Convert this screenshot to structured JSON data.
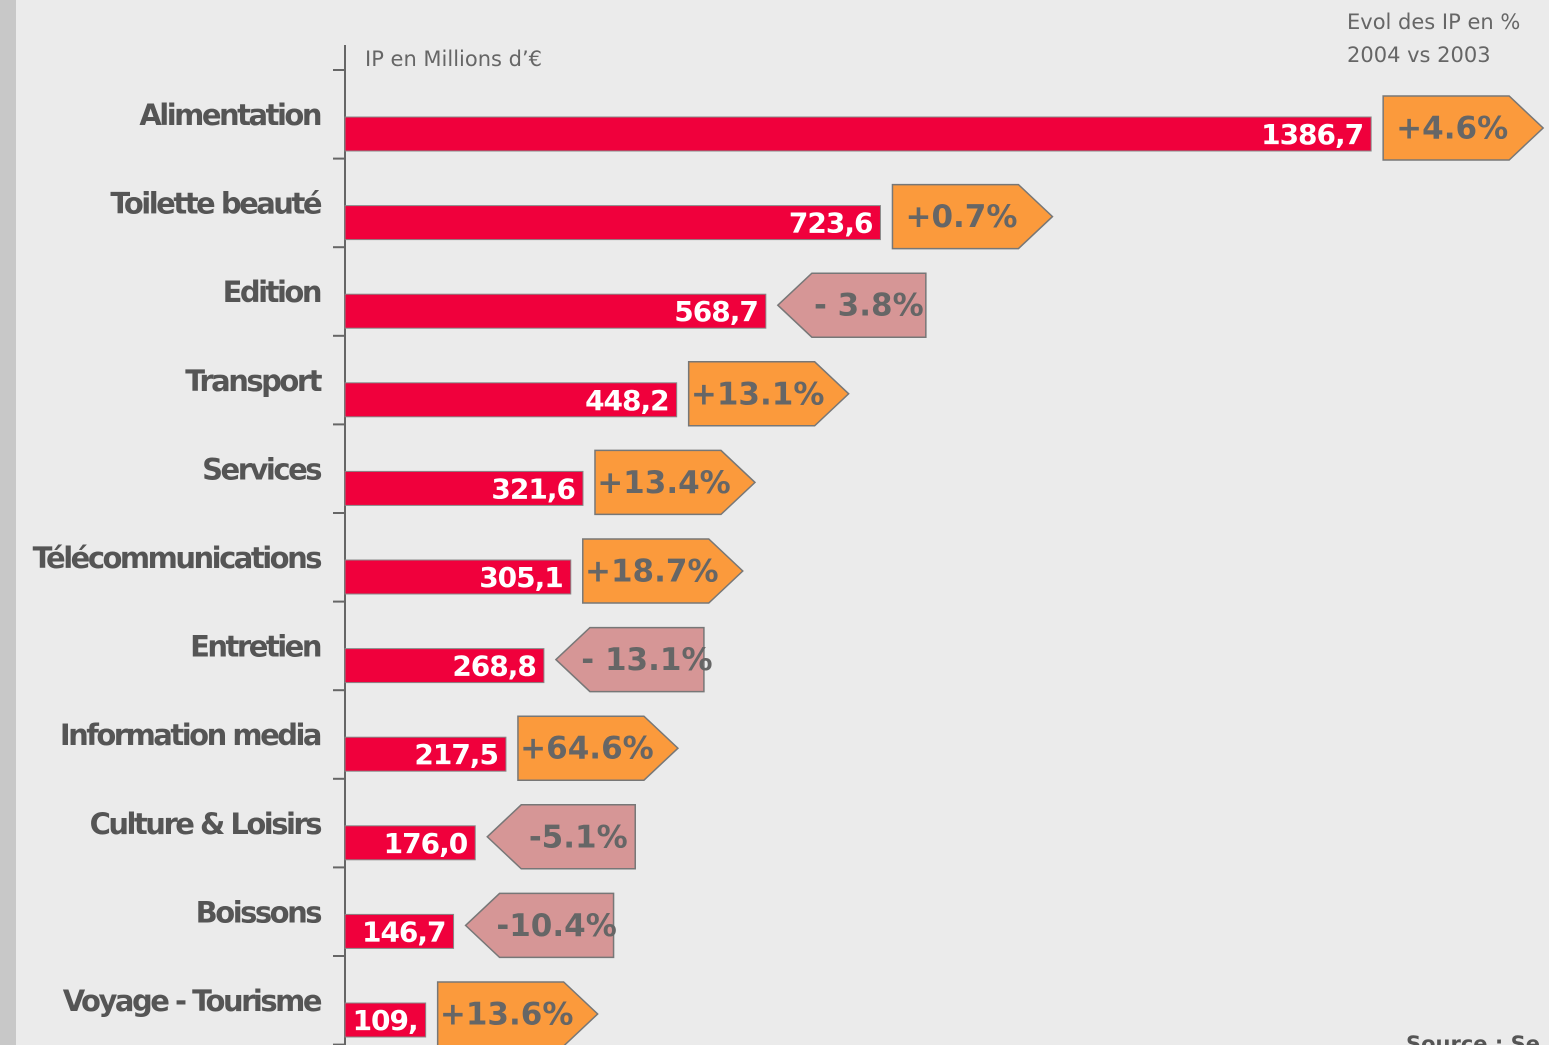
{
  "chart_data": {
    "type": "bar",
    "orientation": "horizontal",
    "axis_label": "IP en Millions d’€",
    "evolution_title": [
      "Evol des IP en %",
      "2004 vs 2003"
    ],
    "source": "Source : Se",
    "categories": [
      "Alimentation",
      "Toilette beauté",
      "Edition",
      "Transport",
      "Services",
      "Télécommunications",
      "Entretien",
      "Information media",
      "Culture & Loisirs",
      "Boissons",
      "Voyage - Tourisme"
    ],
    "values": [
      1386.7,
      723.6,
      568.7,
      448.2,
      321.6,
      305.1,
      268.8,
      217.5,
      176.0,
      146.7,
      109
    ],
    "value_labels": [
      "1386,7",
      "723,6",
      "568,7",
      "448,2",
      "321,6",
      "305,1",
      "268,8",
      "217,5",
      "176,0",
      "146,7",
      "109,"
    ],
    "color": "#f0003c",
    "xlim": [
      0,
      1400
    ],
    "evolution": {
      "values": [
        4.6,
        0.7,
        -3.8,
        13.1,
        13.4,
        18.7,
        -13.1,
        64.6,
        -5.1,
        -10.4,
        13.6
      ],
      "value_labels": [
        "+4.6%",
        "+0.7%",
        "- 3.8%",
        "+13.1%",
        "+13.4%",
        "+18.7%",
        "- 13.1%",
        "+64.6%",
        "-5.1%",
        "-10.4%",
        "+13.6%"
      ],
      "positive_color": "#fb9a3c",
      "negative_color": "#d69696"
    }
  }
}
